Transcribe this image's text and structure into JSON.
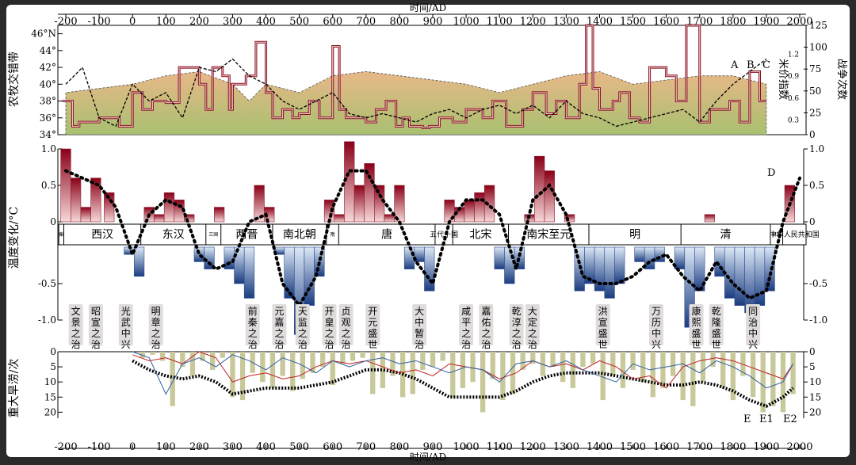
{
  "page": {
    "x_axis_title_top": "时间/AD",
    "x_axis_title_bottom": "时间/AD",
    "x_ticks": [
      -200,
      -100,
      0,
      100,
      200,
      300,
      400,
      500,
      600,
      700,
      800,
      900,
      1000,
      1100,
      1200,
      1300,
      1400,
      1500,
      1600,
      1700,
      1800,
      1900,
      2000
    ],
    "colors": {
      "background": "#ffffff",
      "frame": "#2a2a2a",
      "warm": "#b02040",
      "cool": "#3c6cb0",
      "olive": "#c8c89a",
      "ochre": "#e0b080",
      "green": "#a8c070",
      "line": "#000000",
      "redline": "#c02020",
      "blueline": "#3060a0"
    }
  },
  "chart_data": [
    {
      "type": "line",
      "panel": "top",
      "ylabel_left": "农牧交错带",
      "ylabel_right_inner": "米价指数",
      "ylabel_right_outer": "战争次数",
      "left_ticks": [
        "34°",
        "36°",
        "38°",
        "40°",
        "42°",
        "44°",
        "46°N"
      ],
      "left_ticks_values": [
        34,
        36,
        38,
        40,
        42,
        44,
        46
      ],
      "right_inner_ticks": [
        "0.3",
        "0.6",
        "0.9",
        "1.2"
      ],
      "right_outer_ticks": [
        0,
        25,
        50,
        75,
        100,
        125
      ],
      "ylim_left": [
        34,
        47
      ],
      "ylim_right": [
        0,
        125
      ],
      "annotations": [
        "A",
        "B",
        "C"
      ],
      "series": [
        {
          "name": "",
          "role": "farming-pastoral boundary latitude (step)",
          "units": "°N",
          "x": [
            -210,
            -180,
            -160,
            -100,
            -40,
            0,
            30,
            60,
            100,
            140,
            200,
            220,
            240,
            270,
            290,
            300,
            340,
            370,
            400,
            420,
            450,
            480,
            500,
            530,
            560,
            600,
            620,
            640,
            700,
            730,
            760,
            790,
            810,
            830,
            870,
            890,
            920,
            960,
            1000,
            1050,
            1080,
            1120,
            1170,
            1200,
            1240,
            1270,
            1300,
            1340,
            1360,
            1380,
            1400,
            1440,
            1460,
            1490,
            1520,
            1550,
            1600,
            1630,
            1660,
            1700,
            1730,
            1790,
            1820,
            1850,
            1880,
            1900
          ],
          "y": [
            38,
            35,
            35.5,
            36,
            35,
            39,
            37,
            38,
            37.8,
            42,
            40,
            37,
            42,
            41,
            37,
            40,
            41,
            45,
            39,
            36,
            37,
            36,
            36.5,
            38,
            36,
            44.5,
            37,
            36,
            35.5,
            37,
            38,
            35,
            36,
            35,
            34.8,
            35,
            36,
            35.5,
            37,
            36,
            38,
            35,
            37,
            39,
            36.5,
            38,
            36,
            40,
            47,
            39.5,
            37,
            38,
            39,
            36,
            35.5,
            42,
            41,
            38,
            47,
            35.5,
            37,
            38,
            35.5,
            41.5,
            38,
            38
          ]
        },
        {
          "name": "",
          "role": "rice price index (dashed)",
          "x": [
            -200,
            -150,
            -100,
            -50,
            0,
            50,
            100,
            150,
            200,
            250,
            300,
            350,
            400,
            450,
            500,
            550,
            600,
            650,
            700,
            750,
            800,
            850,
            900,
            950,
            1000,
            1050,
            1100,
            1150,
            1200,
            1250,
            1300,
            1350,
            1400,
            1450,
            1500,
            1550,
            1600,
            1650,
            1700,
            1750,
            1800,
            1850,
            1900
          ],
          "y": [
            40,
            42,
            36,
            35,
            40,
            38,
            39,
            36,
            42,
            41.5,
            43,
            41,
            40,
            38,
            37,
            38,
            39,
            36.5,
            36,
            36.5,
            36,
            35.5,
            36.5,
            37,
            36,
            37,
            37.5,
            36.5,
            37.5,
            36,
            38,
            36.5,
            36,
            35,
            35.5,
            36,
            36.5,
            37,
            35.5,
            38,
            40,
            41.5,
            43
          ]
        }
      ]
    },
    {
      "type": "bar",
      "panel": "middle",
      "ylabel": "温度变化/°C",
      "ticks": [
        "1.0",
        "0.5",
        "0",
        "-0.5",
        "-1.0"
      ],
      "tick_values": [
        1.0,
        0.5,
        0,
        -0.5,
        -1.0
      ],
      "ylim": [
        -1.25,
        1.25
      ],
      "annotations": [
        "D"
      ],
      "dynasties": [
        "秦",
        "西汉",
        "东汉",
        "三国",
        "两晋",
        "南北朝",
        "隋",
        "唐",
        "五代十国",
        "北宋",
        "南宋至元",
        "明",
        "清",
        "民国",
        "中华人民共和国"
      ],
      "dynasty_starts": [
        -221,
        -206,
        25,
        220,
        265,
        420,
        581,
        618,
        907,
        960,
        1127,
        1368,
        1644,
        1912,
        1949
      ],
      "prosperous_eras": [
        "文景之治",
        "昭宣之治",
        "光武中兴",
        "明章之治",
        "前秦之治",
        "元嘉之治",
        "天监之治",
        "开皇之治",
        "贞观之治",
        "开元盛世",
        "大中暂治",
        "咸平之治",
        "嘉佑之治",
        "乾淳之治",
        "大定之治",
        "洪宣盛世",
        "万历中兴",
        "康熙盛世",
        "乾隆盛世",
        "同治中兴"
      ],
      "bars": {
        "x": [
          -200,
          -170,
          -140,
          -110,
          -70,
          -40,
          -10,
          20,
          50,
          80,
          110,
          140,
          170,
          200,
          230,
          260,
          290,
          320,
          350,
          380,
          410,
          440,
          470,
          500,
          530,
          560,
          590,
          620,
          650,
          680,
          710,
          740,
          770,
          800,
          830,
          860,
          890,
          920,
          950,
          980,
          1010,
          1040,
          1070,
          1100,
          1130,
          1160,
          1190,
          1220,
          1250,
          1280,
          1310,
          1340,
          1370,
          1400,
          1430,
          1460,
          1490,
          1520,
          1550,
          1580,
          1610,
          1640,
          1670,
          1700,
          1730,
          1760,
          1790,
          1820,
          1850,
          1880,
          1910,
          1940,
          1970
        ],
        "values": [
          1.0,
          0.6,
          0.2,
          0.6,
          0.4,
          0.0,
          -0.1,
          -0.4,
          0.2,
          0.1,
          0.4,
          0.3,
          0.1,
          -0.2,
          -0.3,
          0.2,
          -0.3,
          -0.5,
          -0.7,
          0.5,
          0.2,
          -0.1,
          -0.7,
          -1.2,
          -0.8,
          -0.4,
          0.3,
          0.1,
          1.1,
          0.5,
          0.8,
          0.5,
          0.1,
          0.5,
          -0.3,
          -0.2,
          -0.6,
          0.0,
          0.3,
          0.2,
          0.3,
          0.4,
          0.5,
          -0.3,
          -0.5,
          -0.3,
          0.1,
          0.9,
          0.7,
          0.0,
          0.1,
          -0.6,
          -0.5,
          -0.6,
          -0.7,
          -0.5,
          0.0,
          -0.2,
          -0.3,
          -0.2,
          0.0,
          -0.3,
          -1.1,
          -0.6,
          0.1,
          -0.4,
          -0.7,
          -0.8,
          -0.9,
          -0.8,
          -0.6,
          0.0,
          0.5
        ]
      },
      "smooth": {
        "x": [
          -200,
          -150,
          -100,
          -50,
          0,
          50,
          100,
          150,
          200,
          250,
          300,
          350,
          400,
          450,
          500,
          550,
          600,
          650,
          700,
          750,
          800,
          850,
          900,
          950,
          1000,
          1050,
          1100,
          1150,
          1200,
          1250,
          1300,
          1350,
          1400,
          1450,
          1500,
          1550,
          1600,
          1650,
          1700,
          1750,
          1800,
          1850,
          1900,
          1950,
          2000
        ],
        "y": [
          0.7,
          0.6,
          0.5,
          0.2,
          -0.1,
          0.1,
          0.3,
          0.2,
          -0.1,
          -0.3,
          -0.2,
          0.0,
          0.1,
          -0.5,
          -0.8,
          -0.4,
          0.2,
          0.7,
          0.7,
          0.3,
          0.0,
          -0.2,
          -0.5,
          0.0,
          0.3,
          0.3,
          0.1,
          -0.3,
          0.3,
          0.5,
          0.1,
          -0.4,
          -0.5,
          -0.5,
          -0.4,
          -0.2,
          -0.1,
          -0.4,
          -0.6,
          -0.2,
          -0.5,
          -0.7,
          -0.6,
          0.0,
          0.6
        ]
      }
    },
    {
      "type": "bar",
      "panel": "bottom",
      "ylabel": "重大旱涝/次",
      "ticks": [
        0,
        5,
        10,
        15,
        20
      ],
      "ylim": [
        0,
        22
      ],
      "annotations": [
        "E",
        "E1",
        "E2"
      ],
      "bars": {
        "x": [
          30,
          60,
          90,
          120,
          150,
          180,
          210,
          240,
          270,
          300,
          330,
          360,
          390,
          420,
          450,
          480,
          510,
          540,
          570,
          600,
          630,
          660,
          690,
          720,
          750,
          780,
          810,
          840,
          870,
          900,
          930,
          960,
          990,
          1020,
          1050,
          1080,
          1110,
          1140,
          1170,
          1200,
          1230,
          1260,
          1290,
          1320,
          1350,
          1380,
          1410,
          1440,
          1470,
          1500,
          1530,
          1560,
          1590,
          1620,
          1650,
          1680,
          1710,
          1740,
          1770,
          1800,
          1830,
          1860,
          1890,
          1920,
          1950,
          1980
        ],
        "values": [
          2,
          1,
          3,
          18,
          5,
          8,
          3,
          6,
          2,
          15,
          16,
          7,
          10,
          12,
          8,
          13,
          9,
          7,
          5,
          11,
          4,
          3,
          2,
          14,
          12,
          8,
          15,
          14,
          6,
          5,
          3,
          15,
          12,
          10,
          20,
          9,
          16,
          14,
          6,
          4,
          8,
          5,
          10,
          12,
          5,
          4,
          16,
          8,
          12,
          6,
          10,
          15,
          12,
          8,
          16,
          18,
          10,
          5,
          12,
          16,
          8,
          15,
          20,
          18,
          20,
          14
        ]
      },
      "series": [
        {
          "name": "E",
          "style": "black dotted thick",
          "x": [
            0,
            50,
            100,
            150,
            200,
            250,
            300,
            350,
            400,
            450,
            500,
            550,
            600,
            650,
            700,
            750,
            800,
            850,
            900,
            950,
            1000,
            1050,
            1100,
            1150,
            1200,
            1250,
            1300,
            1350,
            1400,
            1450,
            1500,
            1550,
            1600,
            1650,
            1700,
            1750,
            1800,
            1850,
            1900,
            1950,
            1980
          ],
          "y": [
            3,
            6,
            8,
            9,
            8,
            10,
            14,
            13,
            12,
            12,
            12,
            11,
            10,
            8,
            6,
            6,
            7,
            9,
            12,
            15,
            15,
            15,
            15,
            13,
            10,
            8,
            7,
            7,
            7,
            8,
            9,
            10,
            11,
            11,
            10,
            11,
            13,
            16,
            18,
            15,
            12
          ]
        },
        {
          "name": "E1",
          "style": "red line",
          "x": [
            0,
            50,
            100,
            150,
            200,
            250,
            300,
            350,
            400,
            450,
            500,
            550,
            600,
            650,
            700,
            750,
            800,
            850,
            900,
            950,
            1000,
            1050,
            1100,
            1150,
            1200,
            1250,
            1300,
            1350,
            1400,
            1450,
            1500,
            1550,
            1600,
            1650,
            1700,
            1750,
            1800,
            1850,
            1900,
            1950,
            1980
          ],
          "y": [
            1,
            3,
            2,
            4,
            0,
            2,
            10,
            8,
            7,
            9,
            8,
            5,
            3,
            4,
            3,
            5,
            7,
            6,
            8,
            4,
            5,
            6,
            9,
            7,
            3,
            5,
            4,
            6,
            3,
            5,
            9,
            8,
            12,
            5,
            3,
            2,
            3,
            5,
            7,
            9,
            4
          ]
        },
        {
          "name": "E2",
          "style": "blue line",
          "x": [
            0,
            50,
            100,
            150,
            200,
            250,
            300,
            350,
            400,
            450,
            500,
            550,
            600,
            650,
            700,
            750,
            800,
            850,
            900,
            950,
            1000,
            1050,
            1100,
            1150,
            1200,
            1250,
            1300,
            1350,
            1400,
            1450,
            1500,
            1550,
            1600,
            1650,
            1700,
            1750,
            1800,
            1850,
            1900,
            1950,
            1980
          ],
          "y": [
            0,
            2,
            14,
            4,
            2,
            5,
            1,
            3,
            6,
            2,
            4,
            7,
            3,
            5,
            3,
            2,
            4,
            3,
            5,
            7,
            5,
            6,
            10,
            4,
            3,
            5,
            3,
            6,
            8,
            10,
            4,
            6,
            5,
            4,
            7,
            3,
            5,
            8,
            12,
            10,
            4
          ]
        }
      ]
    }
  ]
}
